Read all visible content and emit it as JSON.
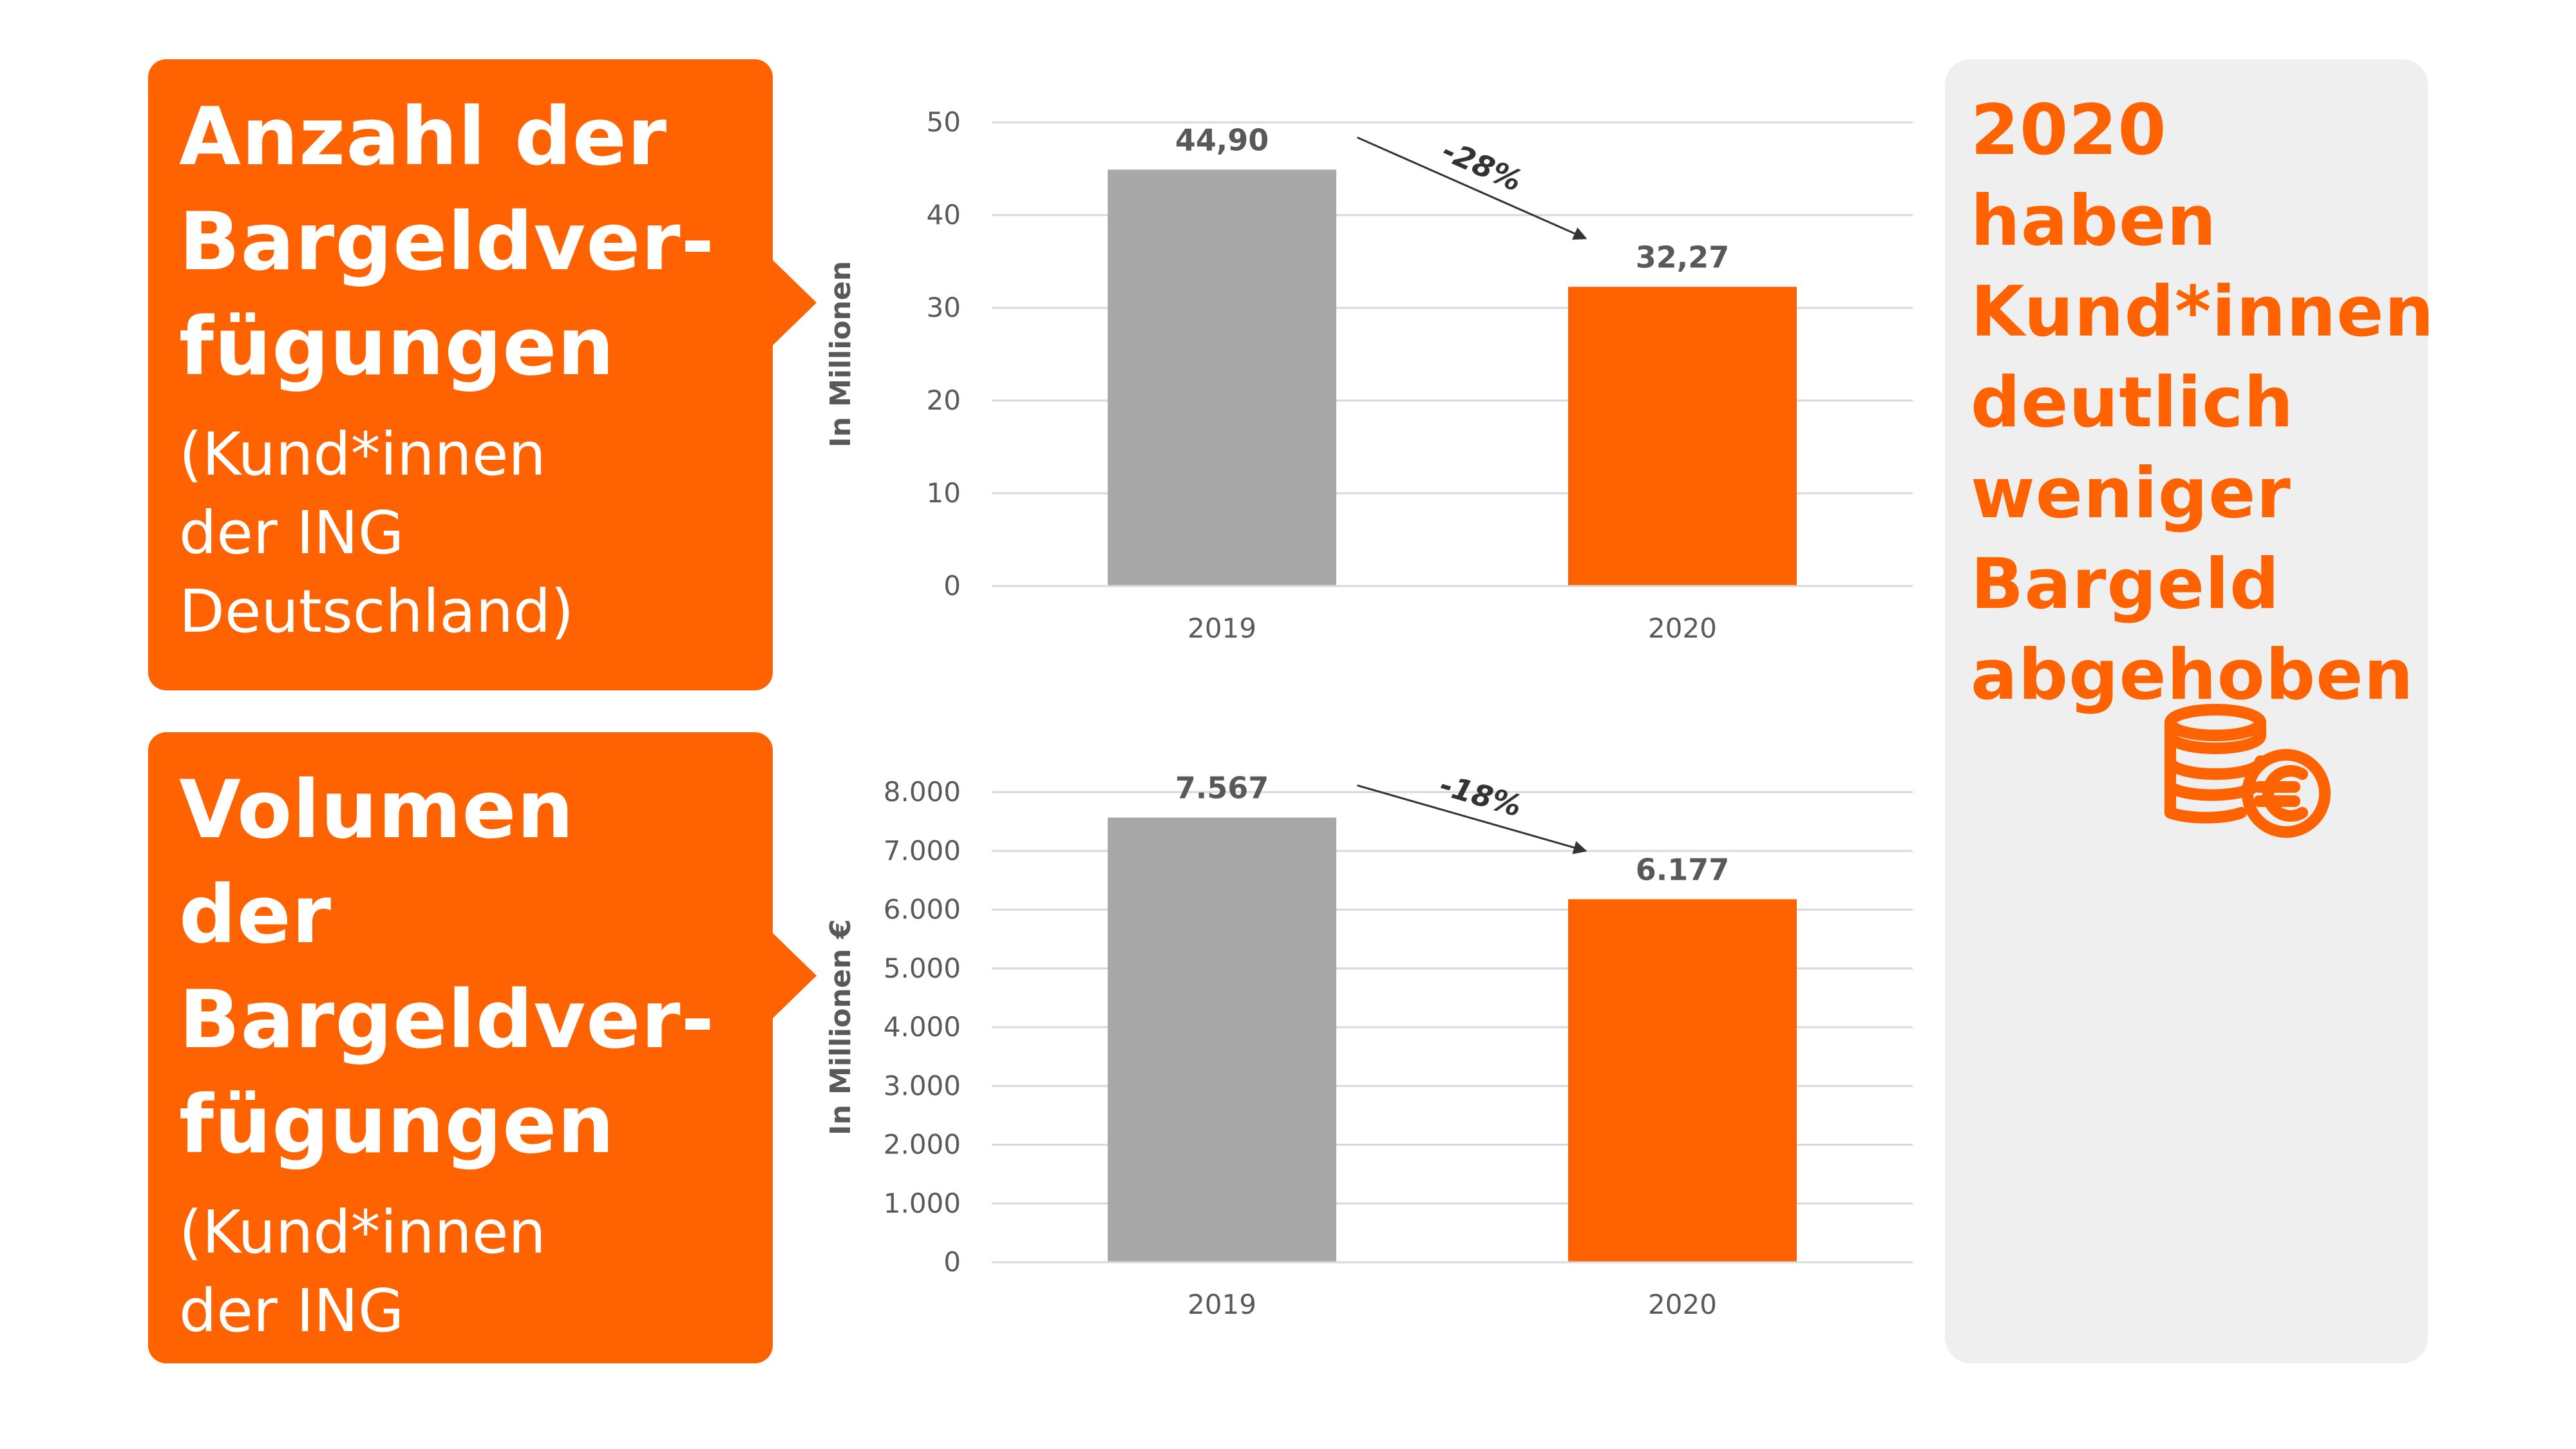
{
  "panels": [
    {
      "heading": "Anzahl der\nBargeldver-\nfügungen",
      "subtitle": "(Kund*innen\nder ING\nDeutschland)"
    },
    {
      "heading": "Volumen der\nBargeldver-\nfügungen",
      "subtitle": "(Kund*innen\nder ING\nDeutschland)"
    }
  ],
  "side": {
    "headline": "2020 haben\nKund*innen\ndeutlich\nweniger\nBargeld\nabgehoben",
    "icon": "coins-euro-icon"
  },
  "colors": {
    "accent": "#ff6200",
    "bar_2019": "#a8a8a8",
    "bar_2020": "#ff6200",
    "panel_bg": "#efefef"
  },
  "chart_data": [
    {
      "type": "bar",
      "categories": [
        "2019",
        "2020"
      ],
      "values": [
        44.9,
        32.27
      ],
      "value_labels": [
        "44,90",
        "32,27"
      ],
      "ylabel": "In Millionen",
      "ylim": [
        0,
        50
      ],
      "yticks": [
        0,
        10,
        20,
        30,
        40,
        50
      ],
      "ytick_labels": [
        "0",
        "10",
        "20",
        "30",
        "40",
        "50"
      ],
      "change_label": "-28%",
      "grid": true
    },
    {
      "type": "bar",
      "categories": [
        "2019",
        "2020"
      ],
      "values": [
        7567,
        6177
      ],
      "value_labels": [
        "7.567",
        "6.177"
      ],
      "ylabel": "In Millionen €",
      "ylim": [
        0,
        8000
      ],
      "yticks": [
        0,
        1000,
        2000,
        3000,
        4000,
        5000,
        6000,
        7000,
        8000
      ],
      "ytick_labels": [
        "0",
        "1.000",
        "2.000",
        "3.000",
        "4.000",
        "5.000",
        "6.000",
        "7.000",
        "8.000"
      ],
      "change_label": "-18%",
      "grid": true
    }
  ]
}
